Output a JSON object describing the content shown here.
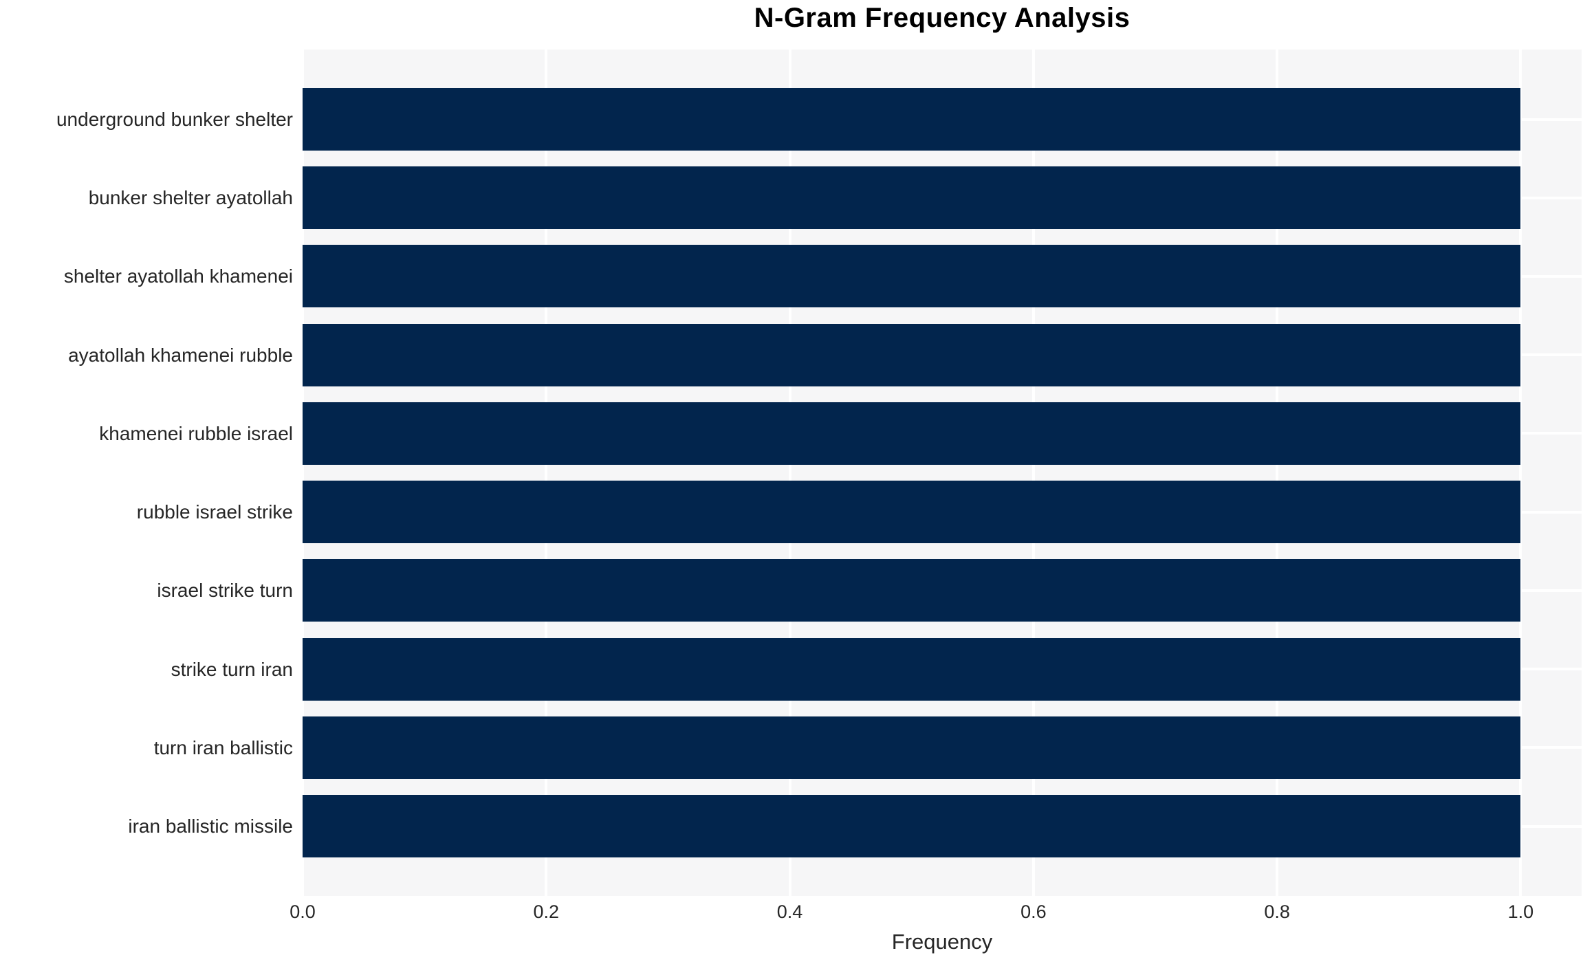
{
  "chart_data": {
    "type": "bar",
    "orientation": "horizontal",
    "title": "N-Gram Frequency Analysis",
    "xlabel": "Frequency",
    "ylabel": "",
    "categories": [
      "underground bunker shelter",
      "bunker shelter ayatollah",
      "shelter ayatollah khamenei",
      "ayatollah khamenei rubble",
      "khamenei rubble israel",
      "rubble israel strike",
      "israel strike turn",
      "strike turn iran",
      "turn iran ballistic",
      "iran ballistic missile"
    ],
    "values": [
      1.0,
      1.0,
      1.0,
      1.0,
      1.0,
      1.0,
      1.0,
      1.0,
      1.0,
      1.0
    ],
    "xticks": [
      0.0,
      0.2,
      0.4,
      0.6,
      0.8,
      1.0
    ],
    "xtick_labels": [
      "0.0",
      "0.2",
      "0.4",
      "0.6",
      "0.8",
      "1.0"
    ],
    "xlim": [
      0,
      1.05
    ],
    "grid": true,
    "legend": false,
    "colors": {
      "bar": "#02254d",
      "plot_background": "#f6f6f7",
      "gridline": "#ffffff",
      "tick_text": "#262626",
      "title_text": "#000000"
    }
  }
}
